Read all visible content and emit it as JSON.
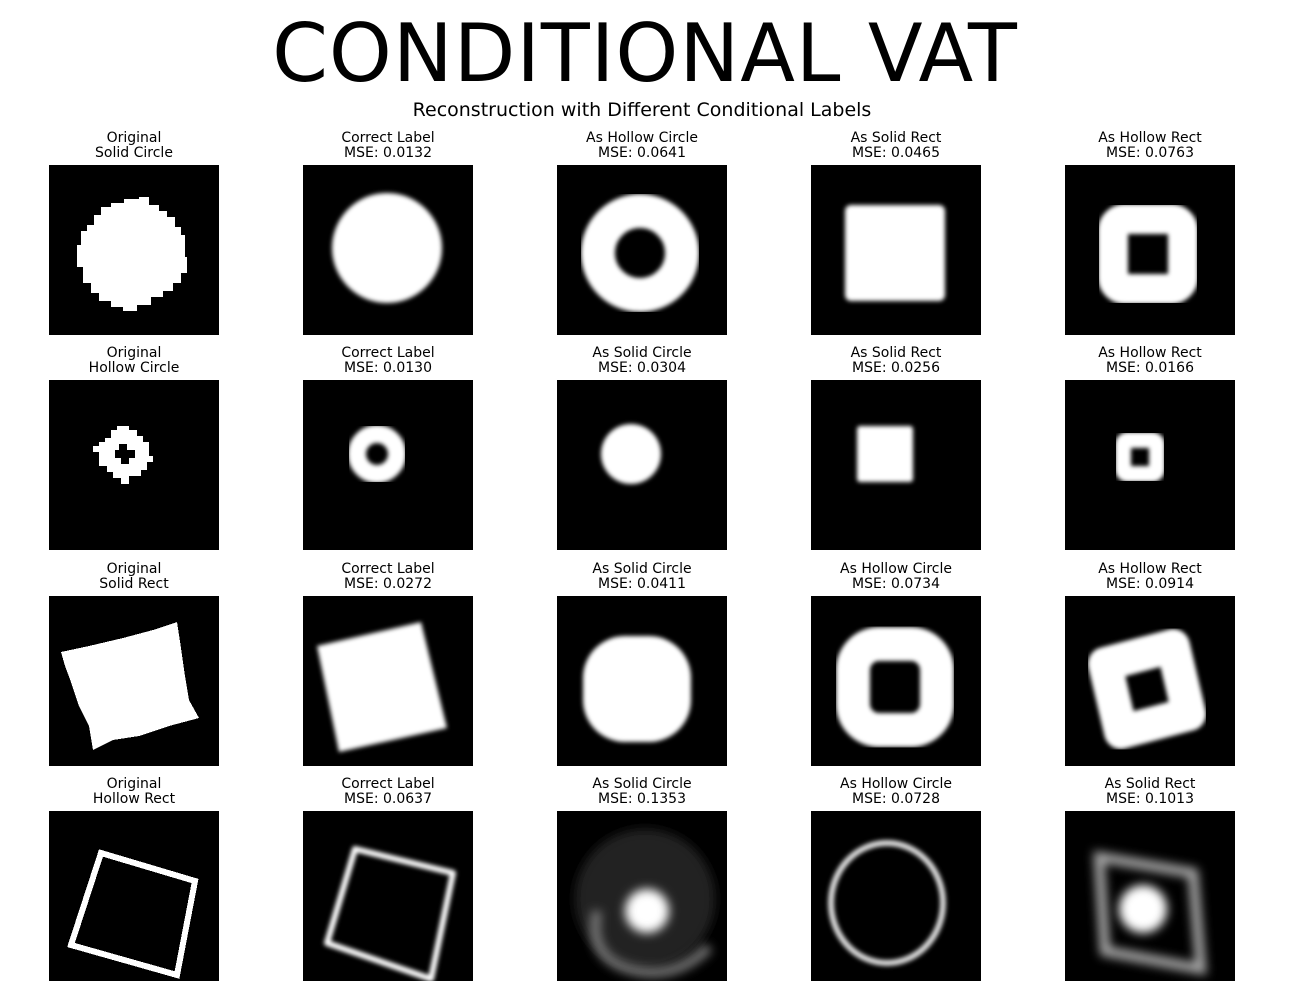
{
  "title": "CONDITIONAL VAT",
  "subtitle": "Reconstruction with Different Conditional Labels",
  "grid": [
    [
      {
        "line1": "Original",
        "line2": "Solid Circle",
        "shape": "solid-circle",
        "style": "pixel"
      },
      {
        "line1": "Correct Label",
        "line2": "MSE: 0.0132",
        "shape": "solid-circle",
        "style": "soft"
      },
      {
        "line1": "As Hollow Circle",
        "line2": "MSE: 0.0641",
        "shape": "hollow-circle-big",
        "style": "soft"
      },
      {
        "line1": "As Solid Rect",
        "line2": "MSE: 0.0465",
        "shape": "solid-square",
        "style": "soft"
      },
      {
        "line1": "As Hollow Rect",
        "line2": "MSE: 0.0763",
        "shape": "hollow-square-big",
        "style": "soft"
      }
    ],
    [
      {
        "line1": "Original",
        "line2": "Hollow Circle",
        "shape": "small-hollow-circle",
        "style": "pixel"
      },
      {
        "line1": "Correct Label",
        "line2": "MSE: 0.0130",
        "shape": "small-hollow-circle",
        "style": "soft"
      },
      {
        "line1": "As Solid Circle",
        "line2": "MSE: 0.0304",
        "shape": "small-solid-circle",
        "style": "soft"
      },
      {
        "line1": "As Solid Rect",
        "line2": "MSE: 0.0256",
        "shape": "small-solid-square",
        "style": "soft"
      },
      {
        "line1": "As Hollow Rect",
        "line2": "MSE: 0.0166",
        "shape": "small-hollow-square",
        "style": "soft"
      }
    ],
    [
      {
        "line1": "Original",
        "line2": "Solid Rect",
        "shape": "rotated-solid-rect",
        "style": "pixel"
      },
      {
        "line1": "Correct Label",
        "line2": "MSE: 0.0272",
        "shape": "rotated-solid-rect-soft",
        "style": "soft"
      },
      {
        "line1": "As Solid Circle",
        "line2": "MSE: 0.0411",
        "shape": "rounded-blob",
        "style": "soft"
      },
      {
        "line1": "As Hollow Circle",
        "line2": "MSE: 0.0734",
        "shape": "rounded-hollow-blob",
        "style": "soft"
      },
      {
        "line1": "As Hollow Rect",
        "line2": "MSE: 0.0914",
        "shape": "rotated-hollow-rect",
        "style": "soft"
      }
    ],
    [
      {
        "line1": "Original",
        "line2": "Hollow Rect",
        "shape": "outline-rect",
        "style": "pixel"
      },
      {
        "line1": "Correct Label",
        "line2": "MSE: 0.0637",
        "shape": "outline-rect-soft",
        "style": "soft"
      },
      {
        "line1": "As Solid Circle",
        "line2": "MSE: 0.1353",
        "shape": "blurry-blob",
        "style": "soft"
      },
      {
        "line1": "As Hollow Circle",
        "line2": "MSE: 0.0728",
        "shape": "thin-ring",
        "style": "soft"
      },
      {
        "line1": "As Solid Rect",
        "line2": "MSE: 0.1013",
        "shape": "blurry-square",
        "style": "soft"
      }
    ]
  ]
}
